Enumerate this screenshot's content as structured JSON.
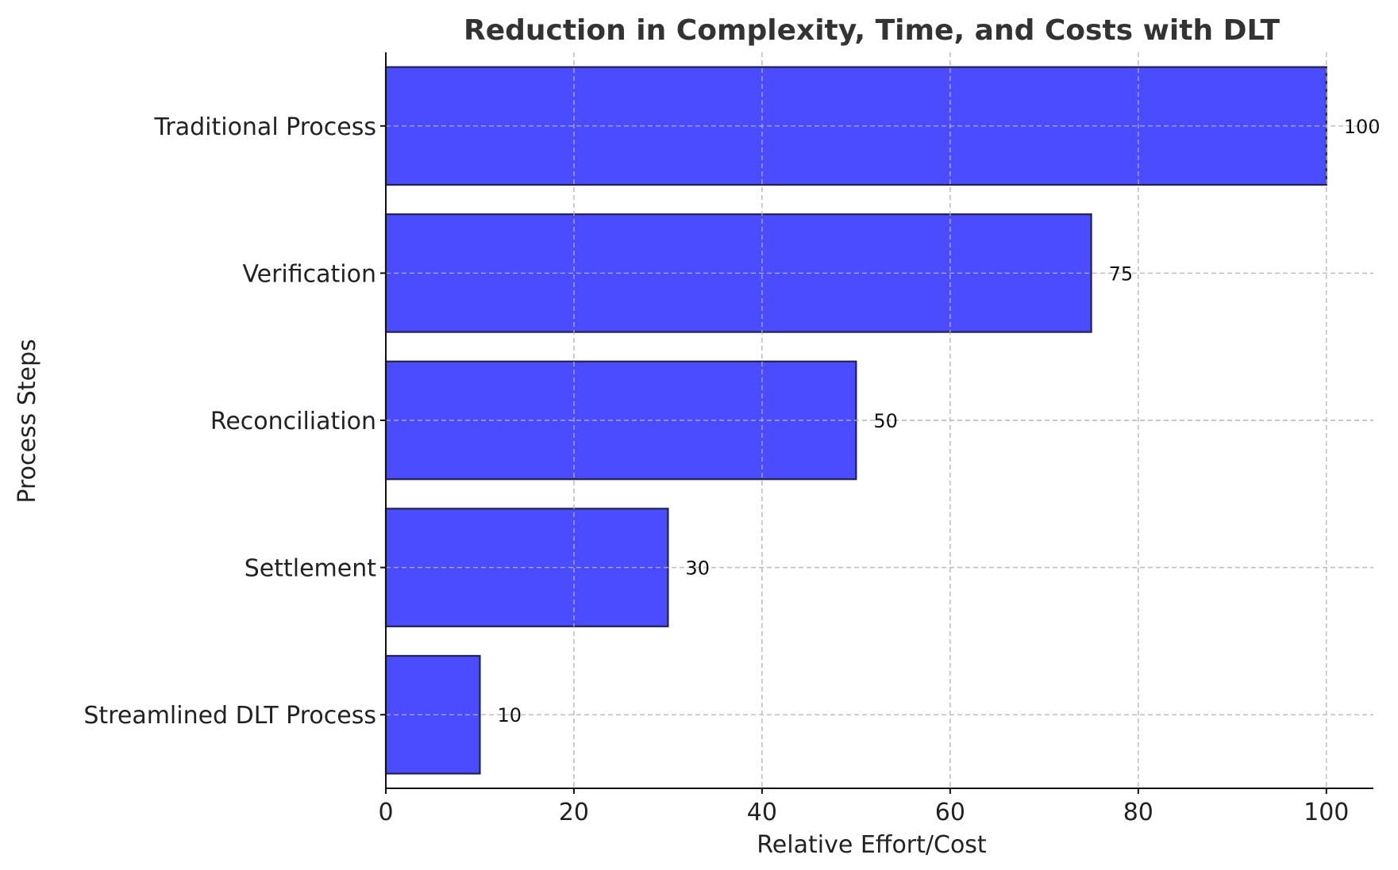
{
  "chart_data": {
    "type": "bar",
    "orientation": "horizontal",
    "title": "Reduction in Complexity, Time, and Costs with DLT",
    "xlabel": "Relative Effort/Cost",
    "ylabel": "Process Steps",
    "categories": [
      "Traditional Process",
      "Verification",
      "Reconciliation",
      "Settlement",
      "Streamlined DLT Process"
    ],
    "values": [
      100,
      75,
      50,
      30,
      10
    ],
    "data_labels": [
      "100",
      "75",
      "50",
      "30",
      "10"
    ],
    "xlim": [
      0,
      105
    ],
    "xticks": [
      0,
      20,
      40,
      60,
      80,
      100
    ],
    "xtick_labels": [
      "0",
      "20",
      "40",
      "60",
      "80",
      "100"
    ],
    "grid": true,
    "bar_color": "#4b4bff",
    "bar_edge_color": "#23234f"
  }
}
